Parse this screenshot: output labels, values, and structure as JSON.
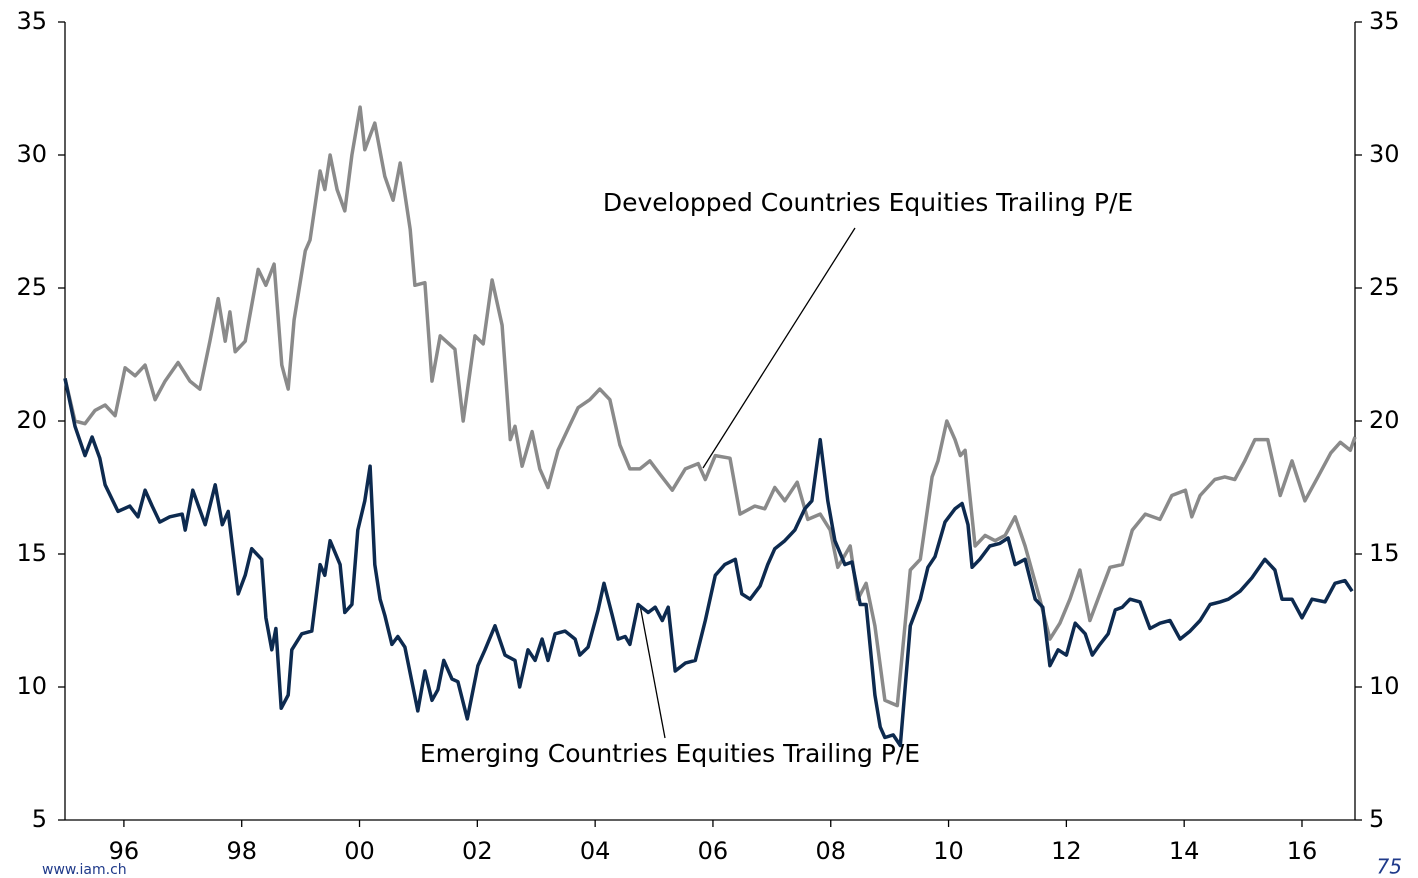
{
  "chart_data": {
    "type": "line",
    "annotations": [
      "Developped Countries Equities Trailing P/E",
      "Emerging Countries Equities Trailing P/E"
    ],
    "source": "www.iam.ch",
    "page_number": "75",
    "xlim": [
      1995,
      2016.9
    ],
    "xticks": [
      {
        "value": 1996,
        "label": "96"
      },
      {
        "value": 1998,
        "label": "98"
      },
      {
        "value": 2000,
        "label": "00"
      },
      {
        "value": 2002,
        "label": "02"
      },
      {
        "value": 2004,
        "label": "04"
      },
      {
        "value": 2006,
        "label": "06"
      },
      {
        "value": 2008,
        "label": "08"
      },
      {
        "value": 2010,
        "label": "10"
      },
      {
        "value": 2012,
        "label": "12"
      },
      {
        "value": 2014,
        "label": "14"
      },
      {
        "value": 2016,
        "label": "16"
      }
    ],
    "ylim": [
      5,
      35
    ],
    "yticks": [
      5,
      10,
      15,
      20,
      25,
      30,
      35
    ],
    "y2lim": [
      5,
      35
    ],
    "y2ticks": [
      5,
      10,
      15,
      20,
      25,
      30,
      35
    ],
    "grid": false,
    "series": [
      {
        "name": "Developped Countries Equities Trailing P/E",
        "color": "#8a8a8a",
        "x": [
          1995.0,
          1995.17,
          1995.34,
          1995.51,
          1995.68,
          1995.85,
          1996.02,
          1996.19,
          1996.36,
          1996.53,
          1996.7,
          1996.92,
          1997.12,
          1997.29,
          1997.46,
          1997.6,
          1997.72,
          1997.8,
          1997.89,
          1998.06,
          1998.28,
          1998.41,
          1998.55,
          1998.68,
          1998.79,
          1998.89,
          1999.08,
          1999.16,
          1999.33,
          1999.41,
          1999.5,
          1999.62,
          1999.75,
          1999.87,
          2000.01,
          2000.09,
          2000.26,
          2000.43,
          2000.57,
          2000.69,
          2000.86,
          2000.94,
          2001.11,
          2001.23,
          2001.37,
          2001.62,
          2001.76,
          2001.96,
          2002.1,
          2002.25,
          2002.42,
          2002.56,
          2002.64,
          2002.76,
          2002.93,
          2003.06,
          2003.2,
          2003.37,
          2003.54,
          2003.71,
          2003.91,
          2004.08,
          2004.25,
          2004.42,
          2004.59,
          2004.76,
          2004.93,
          2005.1,
          2005.31,
          2005.53,
          2005.75,
          2005.87,
          2006.04,
          2006.29,
          2006.46,
          2006.71,
          2006.88,
          2007.05,
          2007.22,
          2007.43,
          2007.61,
          2007.82,
          2007.99,
          2008.12,
          2008.33,
          2008.46,
          2008.6,
          2008.75,
          2008.92,
          2009.13,
          2009.35,
          2009.52,
          2009.72,
          2009.82,
          2009.97,
          2010.11,
          2010.2,
          2010.28,
          2010.45,
          2010.62,
          2010.79,
          2010.96,
          2011.13,
          2011.3,
          2011.55,
          2011.72,
          2011.89,
          2012.06,
          2012.23,
          2012.4,
          2012.57,
          2012.74,
          2012.95,
          2013.12,
          2013.34,
          2013.59,
          2013.79,
          2014.02,
          2014.13,
          2014.27,
          2014.52,
          2014.69,
          2014.86,
          2015.03,
          2015.2,
          2015.42,
          2015.63,
          2015.83,
          2016.05,
          2016.27,
          2016.49,
          2016.65,
          2016.82,
          2016.9
        ],
        "values": [
          21.6,
          20.0,
          19.9,
          20.4,
          20.6,
          20.2,
          22.0,
          21.7,
          22.1,
          20.8,
          21.5,
          22.2,
          21.5,
          21.2,
          23.0,
          24.6,
          23.0,
          24.1,
          22.6,
          23.0,
          25.7,
          25.1,
          25.9,
          22.1,
          21.2,
          23.8,
          26.4,
          26.8,
          29.4,
          28.7,
          30.0,
          28.7,
          27.9,
          30.0,
          31.8,
          30.2,
          31.2,
          29.2,
          28.3,
          29.7,
          27.2,
          25.1,
          25.2,
          21.5,
          23.2,
          22.7,
          20.0,
          23.2,
          22.9,
          25.3,
          23.6,
          19.3,
          19.8,
          18.3,
          19.6,
          18.2,
          17.5,
          18.9,
          19.7,
          20.5,
          20.8,
          21.2,
          20.8,
          19.1,
          18.2,
          18.2,
          18.5,
          18.0,
          17.4,
          18.2,
          18.4,
          17.8,
          18.7,
          18.6,
          16.5,
          16.8,
          16.7,
          17.5,
          17.0,
          17.7,
          16.3,
          16.5,
          15.9,
          14.5,
          15.3,
          13.3,
          13.9,
          12.3,
          9.5,
          9.3,
          14.4,
          14.8,
          17.9,
          18.5,
          20.0,
          19.3,
          18.7,
          18.9,
          15.3,
          15.7,
          15.5,
          15.7,
          16.4,
          15.3,
          13.3,
          11.8,
          12.4,
          13.3,
          14.4,
          12.5,
          13.5,
          14.5,
          14.6,
          15.9,
          16.5,
          16.3,
          17.2,
          17.4,
          16.4,
          17.2,
          17.8,
          17.9,
          17.8,
          18.5,
          19.3,
          19.3,
          17.2,
          18.5,
          17.0,
          17.9,
          18.8,
          19.2,
          18.9,
          19.4
        ]
      },
      {
        "name": "Emerging Countries Equities Trailing P/E",
        "color": "#0d2a4f",
        "x": [
          1995.0,
          1995.17,
          1995.34,
          1995.46,
          1995.59,
          1995.68,
          1995.9,
          1996.1,
          1996.24,
          1996.36,
          1996.48,
          1996.61,
          1996.78,
          1996.99,
          1997.04,
          1997.17,
          1997.38,
          1997.55,
          1997.67,
          1997.77,
          1997.94,
          1998.06,
          1998.17,
          1998.34,
          1998.41,
          1998.51,
          1998.58,
          1998.67,
          1998.79,
          1998.85,
          1999.02,
          1999.19,
          1999.33,
          1999.41,
          1999.5,
          1999.67,
          1999.75,
          1999.87,
          1999.97,
          2000.09,
          2000.18,
          2000.26,
          2000.35,
          2000.43,
          2000.55,
          2000.65,
          2000.77,
          2000.99,
          2001.11,
          2001.23,
          2001.33,
          2001.43,
          2001.57,
          2001.67,
          2001.83,
          2002.01,
          2002.13,
          2002.3,
          2002.47,
          2002.64,
          2002.72,
          2002.86,
          2002.98,
          2003.1,
          2003.2,
          2003.32,
          2003.49,
          2003.66,
          2003.74,
          2003.88,
          2004.05,
          2004.15,
          2004.29,
          2004.39,
          2004.51,
          2004.59,
          2004.73,
          2004.9,
          2005.02,
          2005.14,
          2005.24,
          2005.36,
          2005.53,
          2005.7,
          2005.87,
          2006.04,
          2006.2,
          2006.38,
          2006.49,
          2006.63,
          2006.8,
          2006.93,
          2007.05,
          2007.22,
          2007.39,
          2007.56,
          2007.68,
          2007.82,
          2007.95,
          2008.07,
          2008.24,
          2008.36,
          2008.5,
          2008.6,
          2008.75,
          2008.84,
          2008.92,
          2009.06,
          2009.18,
          2009.35,
          2009.52,
          2009.65,
          2009.77,
          2009.94,
          2010.11,
          2010.23,
          2010.33,
          2010.4,
          2010.53,
          2010.7,
          2010.87,
          2011.01,
          2011.13,
          2011.3,
          2011.47,
          2011.6,
          2011.72,
          2011.86,
          2012.0,
          2012.15,
          2012.32,
          2012.44,
          2012.57,
          2012.71,
          2012.83,
          2012.95,
          2013.08,
          2013.25,
          2013.42,
          2013.59,
          2013.76,
          2013.93,
          2014.1,
          2014.27,
          2014.44,
          2014.61,
          2014.75,
          2014.95,
          2015.15,
          2015.37,
          2015.54,
          2015.66,
          2015.83,
          2016.0,
          2016.17,
          2016.39,
          2016.56,
          2016.73,
          2016.85
        ],
        "values": [
          21.6,
          19.8,
          18.7,
          19.4,
          18.6,
          17.6,
          16.6,
          16.8,
          16.4,
          17.4,
          16.8,
          16.2,
          16.4,
          16.5,
          15.9,
          17.4,
          16.1,
          17.6,
          16.1,
          16.6,
          13.5,
          14.2,
          15.2,
          14.8,
          12.6,
          11.4,
          12.2,
          9.2,
          9.7,
          11.4,
          12.0,
          12.1,
          14.6,
          14.2,
          15.5,
          14.6,
          12.8,
          13.1,
          15.9,
          17.0,
          18.3,
          14.6,
          13.3,
          12.7,
          11.6,
          11.9,
          11.5,
          9.1,
          10.6,
          9.5,
          9.9,
          11.0,
          10.3,
          10.2,
          8.8,
          10.8,
          11.4,
          12.3,
          11.2,
          11.0,
          10.0,
          11.4,
          11.0,
          11.8,
          11.0,
          12.0,
          12.1,
          11.8,
          11.2,
          11.5,
          12.9,
          13.9,
          12.7,
          11.8,
          11.9,
          11.6,
          13.1,
          12.8,
          13.0,
          12.5,
          13.0,
          10.6,
          10.9,
          11.0,
          12.5,
          14.2,
          14.6,
          14.8,
          13.5,
          13.3,
          13.8,
          14.6,
          15.2,
          15.5,
          15.9,
          16.7,
          17.0,
          19.3,
          17.0,
          15.5,
          14.6,
          14.7,
          13.1,
          13.1,
          9.7,
          8.5,
          8.1,
          8.2,
          7.8,
          12.3,
          13.3,
          14.5,
          14.9,
          16.2,
          16.7,
          16.9,
          16.1,
          14.5,
          14.8,
          15.3,
          15.4,
          15.6,
          14.6,
          14.8,
          13.3,
          13.0,
          10.8,
          11.4,
          11.2,
          12.4,
          12.0,
          11.2,
          11.6,
          12.0,
          12.9,
          13.0,
          13.3,
          13.2,
          12.2,
          12.4,
          12.5,
          11.8,
          12.1,
          12.5,
          13.1,
          13.2,
          13.3,
          13.6,
          14.1,
          14.8,
          14.4,
          13.3,
          13.3,
          12.6,
          13.3,
          13.2,
          13.9,
          14.0,
          13.6
        ]
      }
    ]
  }
}
